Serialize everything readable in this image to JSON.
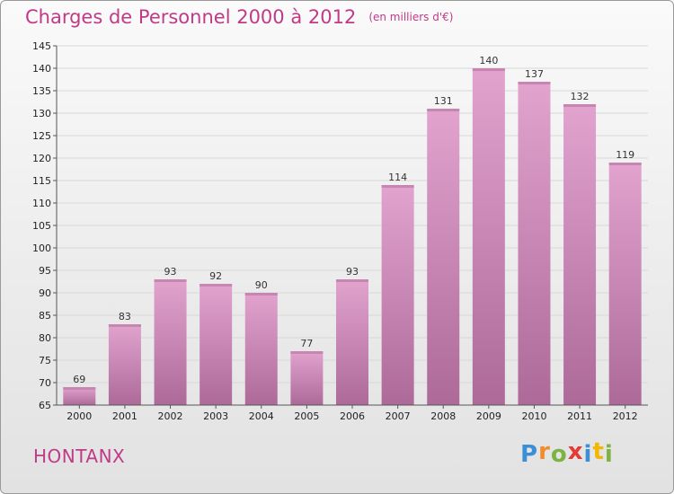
{
  "title": "Charges de Personnel 2000 à 2012",
  "subtitle": "(en milliers d'€)",
  "place": "HONTANX",
  "logo": {
    "letters": [
      "P",
      "r",
      "o",
      "x",
      "i",
      "t",
      "i"
    ],
    "colors": [
      "#3b8fd4",
      "#f28c28",
      "#7cb342",
      "#e53935",
      "#3b8fd4",
      "#f2b705",
      "#7cb342"
    ]
  },
  "colors": {
    "bar": "#d989bf",
    "bar_dark": "#b06a98",
    "title": "#c03a88"
  },
  "chart_data": {
    "type": "bar",
    "categories": [
      "2000",
      "2001",
      "2002",
      "2003",
      "2004",
      "2005",
      "2006",
      "2007",
      "2008",
      "2009",
      "2010",
      "2011",
      "2012"
    ],
    "values": [
      69,
      83,
      93,
      92,
      90,
      77,
      93,
      114,
      131,
      140,
      137,
      132,
      119
    ],
    "ylim": [
      65,
      145
    ],
    "yticks": [
      65,
      70,
      75,
      80,
      85,
      90,
      95,
      100,
      105,
      110,
      115,
      120,
      125,
      130,
      135,
      140,
      145
    ],
    "grid": true
  }
}
